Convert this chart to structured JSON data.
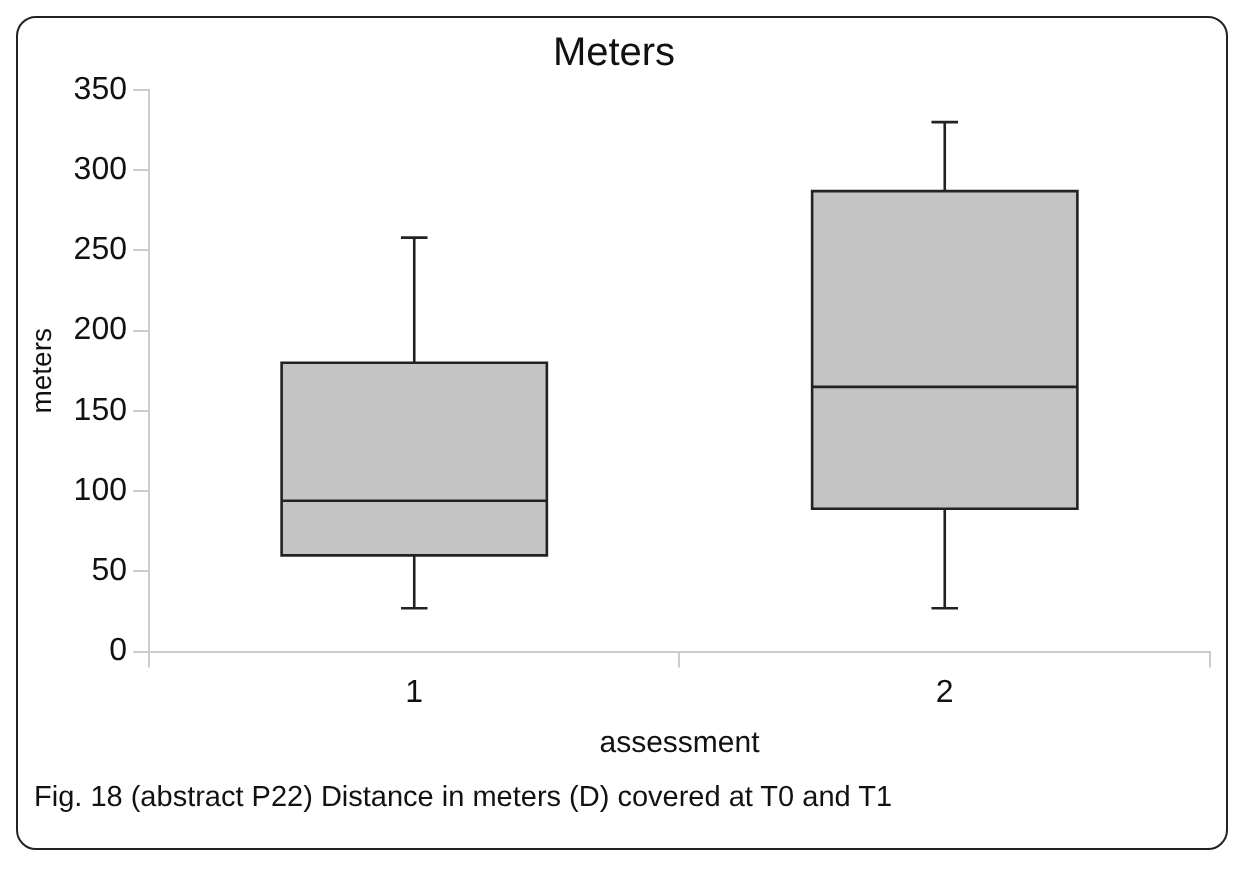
{
  "chart_data": {
    "type": "box",
    "title": "Meters",
    "xlabel": "assessment",
    "ylabel": "meters",
    "categories": [
      "1",
      "2"
    ],
    "boxes": [
      {
        "low": 27,
        "q1": 60,
        "median": 94,
        "q3": 180,
        "high": 258
      },
      {
        "low": 27,
        "q1": 89,
        "median": 165,
        "q3": 287,
        "high": 330
      }
    ],
    "color": "#c4c4c4",
    "ylim": [
      0,
      350
    ],
    "yticks": [
      0,
      50,
      100,
      150,
      200,
      250,
      300,
      350
    ],
    "grid": false,
    "legend": false,
    "annotations": [
      "Fig. 18 (abstract P22) Distance in meters (D) covered at T0 and T1"
    ]
  }
}
